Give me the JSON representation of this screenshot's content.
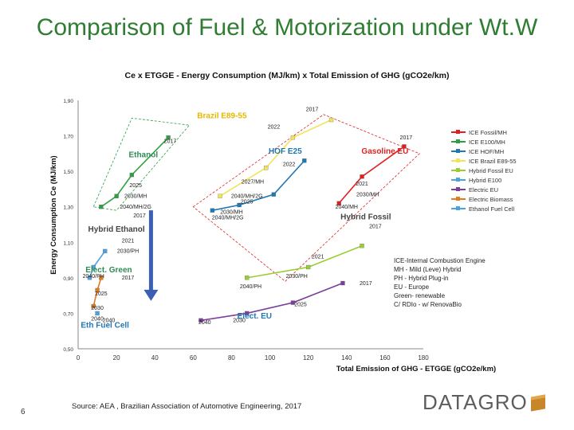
{
  "slide": {
    "title": "Comparison of Fuel & Motorization under Wt.W",
    "source": "Source: AEA , Brazilian Association of Automotive Engineering, 2017",
    "page_number": "6",
    "logo_text": "DATAGRO"
  },
  "notes": [
    "ICE-Internal Combustion Engine",
    "MH - Mild (Leve) Hybrid",
    "PH - Hybrid Plug-in",
    "EU - Europe",
    "Green- renewable",
    "C/ RDIo - w/ RenovaBio"
  ],
  "chart_data": {
    "type": "line",
    "title": "Ce x ETGGE - Energy Consumption (MJ/km) x Total Emission of GHG (gCO2e/km)",
    "xlabel": "Total Emission of GHG - ETGGE (gCO2e/km)",
    "ylabel": "Energy Consumption Ce (MJ/km)",
    "xlim": [
      0,
      180
    ],
    "ylim": [
      0.5,
      1.9
    ],
    "x_ticks": [
      "0",
      "20",
      "40",
      "60",
      "80",
      "100",
      "120",
      "140",
      "160",
      "180"
    ],
    "y_ticks": [
      "0,50",
      "0,70",
      "0,90",
      "1,10",
      "1,30",
      "1,50",
      "1,70",
      "1,90"
    ],
    "series": [
      {
        "name": "ICE Fossil/MH",
        "color": "#e02020",
        "points": [
          [
            136,
            1.32
          ],
          [
            148,
            1.47
          ],
          [
            170,
            1.64
          ]
        ]
      },
      {
        "name": "ICE E100/MH",
        "color": "#2ea043",
        "points": [
          [
            12,
            1.3
          ],
          [
            20,
            1.36
          ],
          [
            28,
            1.48
          ],
          [
            47,
            1.69
          ]
        ]
      },
      {
        "name": "ICE HOF/MH",
        "color": "#1f77b4",
        "points": [
          [
            70,
            1.28
          ],
          [
            84,
            1.31
          ],
          [
            102,
            1.37
          ],
          [
            118,
            1.56
          ]
        ]
      },
      {
        "name": "ICE Brazil E89-55",
        "color": "#f2e35a",
        "points": [
          [
            74,
            1.36
          ],
          [
            98,
            1.52
          ],
          [
            112,
            1.69
          ],
          [
            132,
            1.79
          ]
        ]
      },
      {
        "name": "Hybrid Fossil EU",
        "color": "#9acd32",
        "points": [
          [
            88,
            0.9
          ],
          [
            120,
            0.96
          ],
          [
            148,
            1.08
          ]
        ]
      },
      {
        "name": "Hybrid E100",
        "color": "#4aa3df",
        "points": [
          [
            6,
            0.9
          ],
          [
            8,
            0.96
          ],
          [
            14,
            1.05
          ]
        ]
      },
      {
        "name": "Electric EU",
        "color": "#7b3f9b",
        "points": [
          [
            64,
            0.66
          ],
          [
            88,
            0.7
          ],
          [
            112,
            0.76
          ],
          [
            138,
            0.87
          ]
        ]
      },
      {
        "name": "Electric Biomass",
        "color": "#e07b20",
        "points": [
          [
            8,
            0.74
          ],
          [
            10,
            0.83
          ],
          [
            12,
            0.9
          ]
        ]
      },
      {
        "name": "Ethanol Fuel Cell",
        "color": "#4aa3df",
        "points": [
          [
            10,
            0.7
          ]
        ]
      }
    ],
    "annotations": [
      {
        "text": "Brazil E89-55",
        "x": 75,
        "y": 1.8,
        "color": "#e6b800"
      },
      {
        "text": "Ethanol",
        "x": 34,
        "y": 1.58,
        "color": "#2e8b57"
      },
      {
        "text": "HOF E25",
        "x": 108,
        "y": 1.6,
        "color": "#1f77b4"
      },
      {
        "text": "Gasoline EU",
        "x": 160,
        "y": 1.6,
        "color": "#e02020"
      },
      {
        "text": "Hybrid Ethanol",
        "x": 20,
        "y": 1.16,
        "color": "#444444"
      },
      {
        "text": "Hybrid Fossil",
        "x": 150,
        "y": 1.23,
        "color": "#444444"
      },
      {
        "text": "Elect. Green",
        "x": 16,
        "y": 0.93,
        "color": "#2e8b57"
      },
      {
        "text": "Elect. EU",
        "x": 92,
        "y": 0.67,
        "color": "#1f77b4"
      },
      {
        "text": "Eth Fuel Cell",
        "x": 14,
        "y": 0.62,
        "color": "#1f77b4"
      }
    ],
    "point_labels": [
      {
        "text": "2017",
        "x": 122,
        "y": 1.84
      },
      {
        "text": "2022",
        "x": 102,
        "y": 1.74
      },
      {
        "text": "2017",
        "x": 171,
        "y": 1.68
      },
      {
        "text": "2017",
        "x": 48,
        "y": 1.66
      },
      {
        "text": "2022",
        "x": 110,
        "y": 1.53
      },
      {
        "text": "2025",
        "x": 30,
        "y": 1.41
      },
      {
        "text": "2027/MH",
        "x": 91,
        "y": 1.43
      },
      {
        "text": "2021",
        "x": 148,
        "y": 1.42
      },
      {
        "text": "2030/MH",
        "x": 30,
        "y": 1.35
      },
      {
        "text": "2040/MH/2G",
        "x": 88,
        "y": 1.35
      },
      {
        "text": "2030/MH",
        "x": 151,
        "y": 1.36
      },
      {
        "text": "2040/MH/2G",
        "x": 30,
        "y": 1.29
      },
      {
        "text": "2025",
        "x": 88,
        "y": 1.32
      },
      {
        "text": "2040/MH",
        "x": 140,
        "y": 1.29
      },
      {
        "text": "2030/MH",
        "x": 80,
        "y": 1.26
      },
      {
        "text": "2017",
        "x": 32,
        "y": 1.24
      },
      {
        "text": "2040/MH/2G",
        "x": 78,
        "y": 1.23
      },
      {
        "text": "2017",
        "x": 155,
        "y": 1.18
      },
      {
        "text": "2021",
        "x": 26,
        "y": 1.1
      },
      {
        "text": "2030/PH",
        "x": 26,
        "y": 1.04
      },
      {
        "text": "2021",
        "x": 125,
        "y": 1.01
      },
      {
        "text": "2040/PH",
        "x": 8,
        "y": 0.9
      },
      {
        "text": "2017",
        "x": 26,
        "y": 0.89
      },
      {
        "text": "2030/PH",
        "x": 114,
        "y": 0.9
      },
      {
        "text": "2040/PH",
        "x": 90,
        "y": 0.84
      },
      {
        "text": "2017",
        "x": 150,
        "y": 0.86
      },
      {
        "text": "2025",
        "x": 12,
        "y": 0.8
      },
      {
        "text": "2025",
        "x": 116,
        "y": 0.74
      },
      {
        "text": "2030",
        "x": 10,
        "y": 0.72
      },
      {
        "text": "2040",
        "x": 10,
        "y": 0.66
      },
      {
        "text": "2040",
        "x": 16,
        "y": 0.65
      },
      {
        "text": "2040",
        "x": 66,
        "y": 0.64
      },
      {
        "text": "2030",
        "x": 84,
        "y": 0.65
      }
    ],
    "regions": [
      {
        "name": "ethanol-region",
        "color": "#2ea043",
        "points": [
          [
            8,
            1.3
          ],
          [
            28,
            1.8
          ],
          [
            58,
            1.76
          ],
          [
            20,
            1.28
          ]
        ]
      },
      {
        "name": "fossil-region",
        "color": "#e02020",
        "points": [
          [
            60,
            1.3
          ],
          [
            128,
            1.82
          ],
          [
            178,
            1.6
          ],
          [
            108,
            0.88
          ]
        ]
      }
    ],
    "arrow": {
      "x": 38,
      "from_y": 1.28,
      "to_y": 0.77,
      "color": "#3a5fb4"
    }
  }
}
